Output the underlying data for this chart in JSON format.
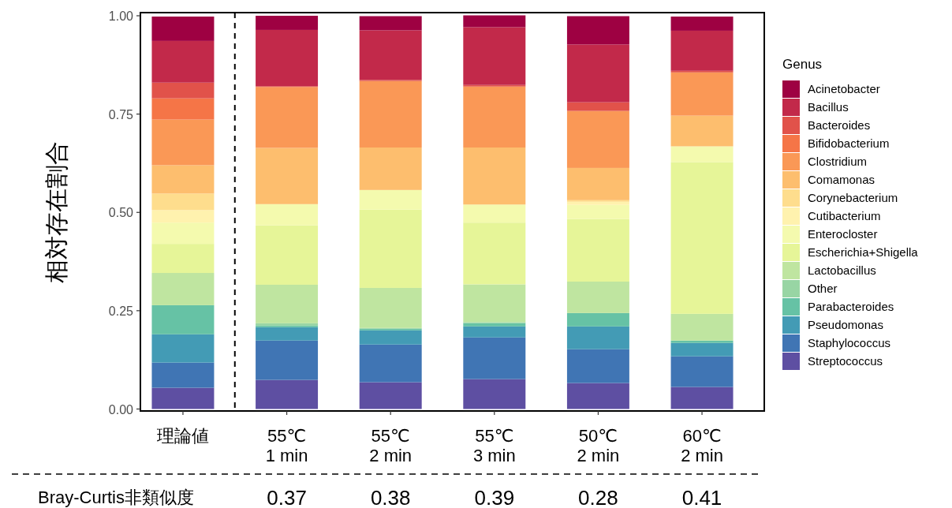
{
  "chart_data": {
    "type": "bar",
    "stacked": true,
    "ylabel": "相対存在割合",
    "legend_title": "Genus",
    "legend": "right",
    "categories": [
      "理論値",
      "55℃\n1 min",
      "55℃\n2 min",
      "55℃\n3 min",
      "50℃\n2 min",
      "60℃\n2 min"
    ],
    "ylim": [
      -0.005,
      1.008
    ],
    "yticks": [
      {
        "value": 0,
        "label": "0.00"
      },
      {
        "value": 0.25,
        "label": "0.25"
      },
      {
        "value": 0.5,
        "label": "0.50"
      },
      {
        "value": 0.75,
        "label": "0.75"
      },
      {
        "value": 1,
        "label": "1.00"
      }
    ],
    "series": [
      {
        "name": "Streptococcus",
        "color": "#5e4fa2",
        "values": [
          0.054,
          0.074,
          0.068,
          0.076,
          0.066,
          0.056
        ]
      },
      {
        "name": "Staphylococcus",
        "color": "#4075b4",
        "values": [
          0.064,
          0.1,
          0.096,
          0.106,
          0.086,
          0.078
        ]
      },
      {
        "name": "Pseudomonas",
        "color": "#439bb5",
        "values": [
          0.072,
          0.034,
          0.036,
          0.028,
          0.058,
          0.034
        ]
      },
      {
        "name": "Parabacteroides",
        "color": "#66c2a5",
        "values": [
          0.074,
          0.004,
          0.004,
          0.008,
          0.034,
          0.006
        ]
      },
      {
        "name": "Other",
        "color": "#98d5a4",
        "values": [
          0,
          0.006,
          0.002,
          0.003,
          0,
          0
        ]
      },
      {
        "name": "Lactobacillus",
        "color": "#bfe5a0",
        "values": [
          0.082,
          0.098,
          0.102,
          0.096,
          0.08,
          0.068
        ]
      },
      {
        "name": "Escherichia+Shigella",
        "color": "#e6f598",
        "values": [
          0.074,
          0.151,
          0.199,
          0.157,
          0.159,
          0.386
        ]
      },
      {
        "name": "Enterocloster",
        "color": "#f4faae",
        "values": [
          0.054,
          0.054,
          0.05,
          0.046,
          0.036,
          0.04
        ]
      },
      {
        "name": "Cutibacterium",
        "color": "#fff2ae",
        "values": [
          0.032,
          0,
          0,
          0,
          0.008,
          0
        ]
      },
      {
        "name": "Corynebacterium",
        "color": "#fedd8d",
        "values": [
          0.042,
          0,
          0,
          0,
          0.004,
          0
        ]
      },
      {
        "name": "Comamonas",
        "color": "#fdbe6e",
        "values": [
          0.072,
          0.143,
          0.108,
          0.145,
          0.082,
          0.078
        ]
      },
      {
        "name": "Clostridium",
        "color": "#fa9856",
        "values": [
          0.116,
          0.155,
          0.169,
          0.155,
          0.145,
          0.11
        ]
      },
      {
        "name": "Bifidobacterium",
        "color": "#f57547",
        "values": [
          0.054,
          0,
          0,
          0,
          0,
          0
        ]
      },
      {
        "name": "Bacteroides",
        "color": "#e1524a",
        "values": [
          0.04,
          0.002,
          0.003,
          0.004,
          0.022,
          0.004
        ]
      },
      {
        "name": "Bacillus",
        "color": "#c2294a",
        "values": [
          0.106,
          0.143,
          0.126,
          0.147,
          0.147,
          0.102
        ]
      },
      {
        "name": "Acinetobacter",
        "color": "#9e0142",
        "values": [
          0.062,
          0.036,
          0.036,
          0.03,
          0.072,
          0.036
        ]
      }
    ],
    "annotations": [
      "Bray-Curtis非類似度",
      "0.37",
      "0.38",
      "0.39",
      "0.28",
      "0.41"
    ]
  }
}
